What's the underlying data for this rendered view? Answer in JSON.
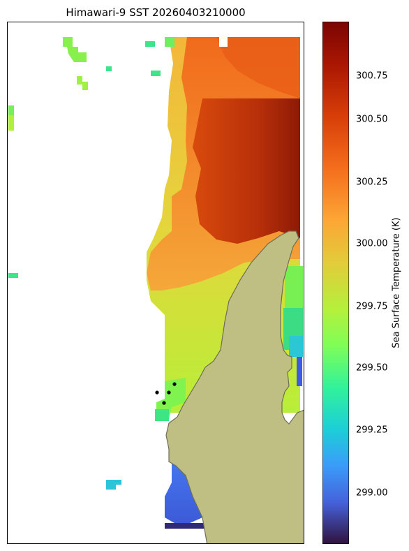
{
  "title": "Himawari-9 SST 20260403210000",
  "colorbar": {
    "label": "Sea Surface Temperature (K)",
    "min": 298.8,
    "max": 300.9,
    "ticks": [
      "300.75",
      "300.50",
      "300.25",
      "300.00",
      "299.75",
      "299.50",
      "299.25",
      "299.00"
    ],
    "colormap": "turbo"
  },
  "colors": {
    "land": "#bfbe83",
    "coastline": "#6e6e58",
    "station": "#000000"
  },
  "stations_shown": 4
}
